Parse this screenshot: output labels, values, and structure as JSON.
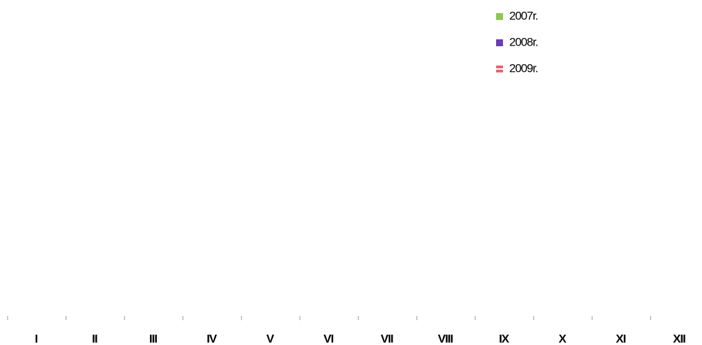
{
  "chart_data": {
    "type": "bar",
    "categories": [
      "I",
      "II",
      "III",
      "IV",
      "V",
      "VI",
      "VII",
      "VIII",
      "IX",
      "X",
      "XI",
      "XII"
    ],
    "series": [
      {
        "name": "2007r.",
        "color": "#8cc850"
      },
      {
        "name": "2008r.",
        "color": "#6a3cb4"
      },
      {
        "name": "2009r.",
        "color": "#e8646e"
      }
    ],
    "legend": "top-right"
  }
}
